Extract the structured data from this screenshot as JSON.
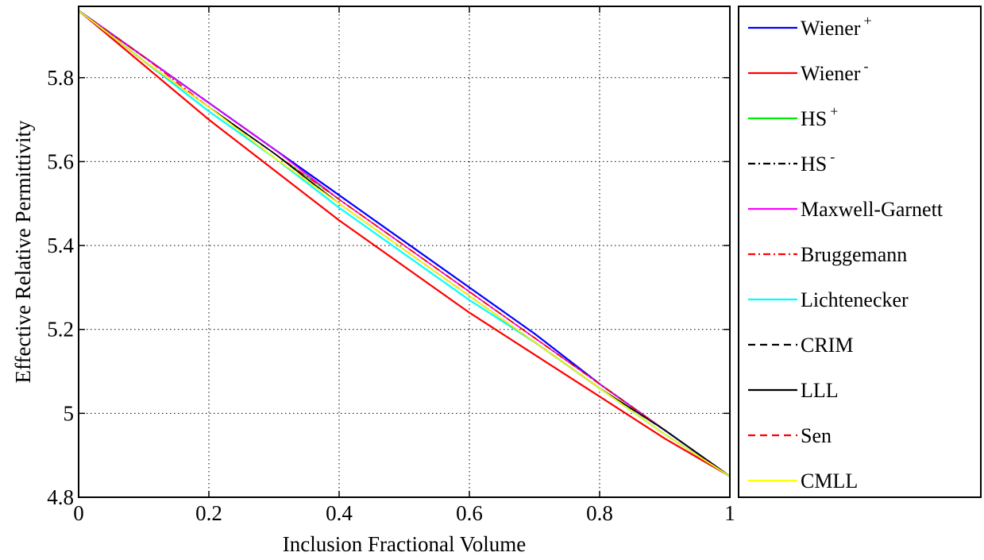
{
  "chart_data": {
    "type": "line",
    "title": "",
    "xlabel": "Inclusion Fractional Volume",
    "ylabel": "Effective Relative Permittivity",
    "xlim": [
      0,
      1
    ],
    "ylim": [
      4.8,
      5.97
    ],
    "xticks": [
      0,
      0.2,
      0.4,
      0.6,
      0.8,
      1
    ],
    "xtick_labels": [
      "0",
      "0.2",
      "0.4",
      "0.6",
      "0.8",
      "1"
    ],
    "yticks": [
      4.8,
      5,
      5.2,
      5.4,
      5.6,
      5.8
    ],
    "ytick_labels": [
      "4.8",
      "5",
      "5.2",
      "5.4",
      "5.6",
      "5.8"
    ],
    "grid": true,
    "legend_position": "right, outside plot",
    "x": [
      0,
      0.1,
      0.2,
      0.3,
      0.4,
      0.5,
      0.6,
      0.7,
      0.8,
      0.9,
      1
    ],
    "series": [
      {
        "name": "Wiener",
        "sup": "+",
        "color": "#0000ff",
        "dash": "solid",
        "values": [
          5.96,
          5.85,
          5.74,
          5.63,
          5.52,
          5.41,
          5.3,
          5.19,
          5.07,
          4.96,
          4.85
        ]
      },
      {
        "name": "Wiener",
        "sup": "-",
        "color": "#ff0000",
        "dash": "solid",
        "values": [
          5.96,
          5.83,
          5.7,
          5.58,
          5.46,
          5.35,
          5.24,
          5.14,
          5.04,
          4.94,
          4.85
        ]
      },
      {
        "name": "HS",
        "sup": "+",
        "color": "#00ee00",
        "dash": "solid",
        "values": [
          5.96,
          5.84,
          5.73,
          5.62,
          5.51,
          5.4,
          5.29,
          5.18,
          5.07,
          4.96,
          4.85
        ]
      },
      {
        "name": "HS",
        "sup": "-",
        "color": "#000000",
        "dash": "dashdot",
        "values": [
          5.96,
          5.85,
          5.74,
          5.63,
          5.51,
          5.4,
          5.29,
          5.18,
          5.07,
          4.96,
          4.85
        ]
      },
      {
        "name": "Maxwell-Garnett",
        "sup": "",
        "color": "#ff00ff",
        "dash": "solid",
        "values": [
          5.96,
          5.85,
          5.74,
          5.63,
          5.51,
          5.4,
          5.29,
          5.18,
          5.07,
          4.96,
          4.85
        ]
      },
      {
        "name": "Bruggemann",
        "sup": "",
        "color": "#ff0000",
        "dash": "dashdot",
        "values": [
          5.96,
          5.85,
          5.73,
          5.62,
          5.51,
          5.4,
          5.29,
          5.18,
          5.07,
          4.96,
          4.85
        ]
      },
      {
        "name": "Lichtenecker",
        "sup": "",
        "color": "#00ffff",
        "dash": "solid",
        "values": [
          5.96,
          5.84,
          5.72,
          5.61,
          5.49,
          5.38,
          5.27,
          5.17,
          5.06,
          4.95,
          4.85
        ]
      },
      {
        "name": "CRIM",
        "sup": "",
        "color": "#000000",
        "dash": "dashed",
        "values": [
          5.96,
          5.84,
          5.73,
          5.62,
          5.5,
          5.39,
          5.28,
          5.17,
          5.06,
          4.96,
          4.85
        ]
      },
      {
        "name": "LLL",
        "sup": "",
        "color": "#000000",
        "dash": "solid",
        "values": [
          5.96,
          5.84,
          5.73,
          5.62,
          5.5,
          5.39,
          5.28,
          5.17,
          5.06,
          4.96,
          4.85
        ]
      },
      {
        "name": "Sen",
        "sup": "",
        "color": "#ff0000",
        "dash": "dashed",
        "values": [
          5.96,
          5.84,
          5.73,
          5.61,
          5.5,
          5.39,
          5.28,
          5.17,
          5.06,
          4.95,
          4.85
        ]
      },
      {
        "name": "CMLL",
        "sup": "",
        "color": "#ffff00",
        "dash": "solid",
        "values": [
          5.96,
          5.84,
          5.73,
          5.61,
          5.5,
          5.39,
          5.28,
          5.17,
          5.06,
          4.95,
          4.85
        ]
      }
    ]
  }
}
